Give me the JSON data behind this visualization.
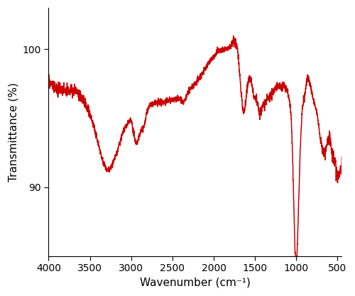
{
  "title": "",
  "xlabel": "Wavenumber (cm⁻¹)",
  "ylabel": "Transmittance (%)",
  "xlim": [
    4000,
    450
  ],
  "ylim": [
    85,
    103
  ],
  "yticks": [
    90,
    100
  ],
  "xticks": [
    500,
    1000,
    1500,
    2000,
    2500,
    3000,
    3500,
    4000
  ],
  "line_color": "#cc0000",
  "line_width": 1.1,
  "background_color": "#ffffff",
  "figsize": [
    5.0,
    4.17
  ],
  "dpi": 100
}
